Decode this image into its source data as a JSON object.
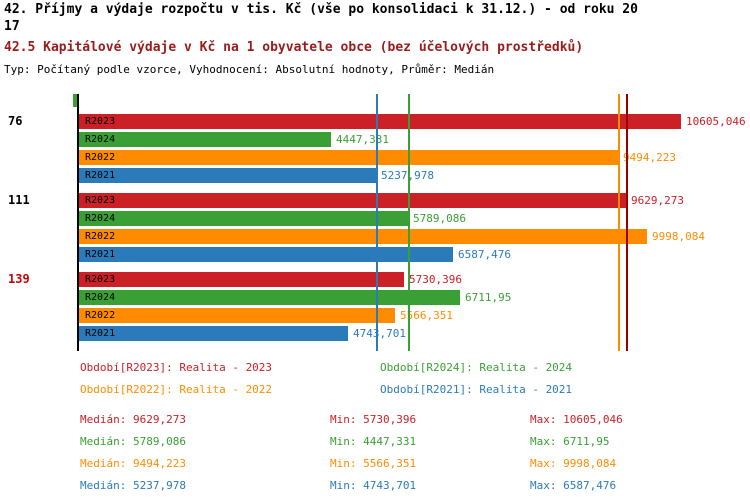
{
  "header": {
    "title_line1": "42. Příjmy a výdaje rozpočtu v tis. Kč (vše po konsolidaci k 31.12.) - od roku 20",
    "title_line2": "17",
    "subtitle": "42.5 Kapitálové výdaje v Kč na 1 obyvatele obce (bez účelových prostředků)",
    "meta": "Typ: Počítaný podle vzorce, Vyhodnocení: Absolutní hodnoty, Průměr: Medián"
  },
  "colors": {
    "r2023": "#cb2026",
    "r2024": "#3aa035",
    "r2022": "#ff8c00",
    "r2021": "#2b7bba",
    "r2023_line": "#990000",
    "axis": "#000000",
    "tick": "#3aa035",
    "subtitle": "#9b1b1b",
    "rank_alert": "#cc0000",
    "rank_normal": "#000000"
  },
  "chart_data": {
    "type": "bar",
    "orientation": "horizontal",
    "title": "42.5 Kapitálové výdaje v Kč na 1 obyvatele obce (bez účelových prostředků)",
    "xlabel": "Kč na 1 obyvatele",
    "xlim": [
      0,
      10605.046
    ],
    "grid": false,
    "legend_position": "bottom",
    "series_order": [
      "R2023",
      "R2024",
      "R2022",
      "R2021"
    ],
    "groups": [
      {
        "label": "76",
        "label_color": "#000000",
        "bars": [
          {
            "series": "R2023",
            "value": 10605.046,
            "value_label": "10605,046"
          },
          {
            "series": "R2024",
            "value": 4447.331,
            "value_label": "4447,331"
          },
          {
            "series": "R2022",
            "value": 9494.223,
            "value_label": "9494,223"
          },
          {
            "series": "R2021",
            "value": 5237.978,
            "value_label": "5237,978"
          }
        ]
      },
      {
        "label": "111",
        "label_color": "#000000",
        "bars": [
          {
            "series": "R2023",
            "value": 9629.273,
            "value_label": "9629,273"
          },
          {
            "series": "R2024",
            "value": 5789.086,
            "value_label": "5789,086"
          },
          {
            "series": "R2022",
            "value": 9998.084,
            "value_label": "9998,084"
          },
          {
            "series": "R2021",
            "value": 6587.476,
            "value_label": "6587,476"
          }
        ]
      },
      {
        "label": "139",
        "label_color": "#cc0000",
        "bars": [
          {
            "series": "R2023",
            "value": 5730.396,
            "value_label": "5730,396"
          },
          {
            "series": "R2024",
            "value": 6711.95,
            "value_label": "6711,95"
          },
          {
            "series": "R2022",
            "value": 5566.351,
            "value_label": "5566,351"
          },
          {
            "series": "R2021",
            "value": 4743.701,
            "value_label": "4743,701"
          }
        ]
      }
    ],
    "median_lines": [
      {
        "series": "R2021",
        "value": 5237.978
      },
      {
        "series": "R2024",
        "value": 5789.086
      },
      {
        "series": "R2022",
        "value": 9494.223
      },
      {
        "series": "R2023",
        "value": 9629.273
      }
    ]
  },
  "legend": {
    "items": [
      {
        "series": "R2023",
        "text": "Období[R2023]: Realita - 2023"
      },
      {
        "series": "R2024",
        "text": "Období[R2024]: Realita - 2024"
      },
      {
        "series": "R2022",
        "text": "Období[R2022]: Realita - 2022"
      },
      {
        "series": "R2021",
        "text": "Období[R2021]: Realita - 2021"
      }
    ]
  },
  "stats": {
    "rows": [
      {
        "series": "R2023",
        "median": "Medián: 9629,273",
        "min": "Min: 5730,396",
        "max": "Max: 10605,046"
      },
      {
        "series": "R2024",
        "median": "Medián: 5789,086",
        "min": "Min: 4447,331",
        "max": "Max: 6711,95"
      },
      {
        "series": "R2022",
        "median": "Medián: 9494,223",
        "min": "Min: 5566,351",
        "max": "Max: 9998,084"
      },
      {
        "series": "R2021",
        "median": "Medián: 5237,978",
        "min": "Min: 4743,701",
        "max": "Max: 6587,476"
      }
    ]
  }
}
